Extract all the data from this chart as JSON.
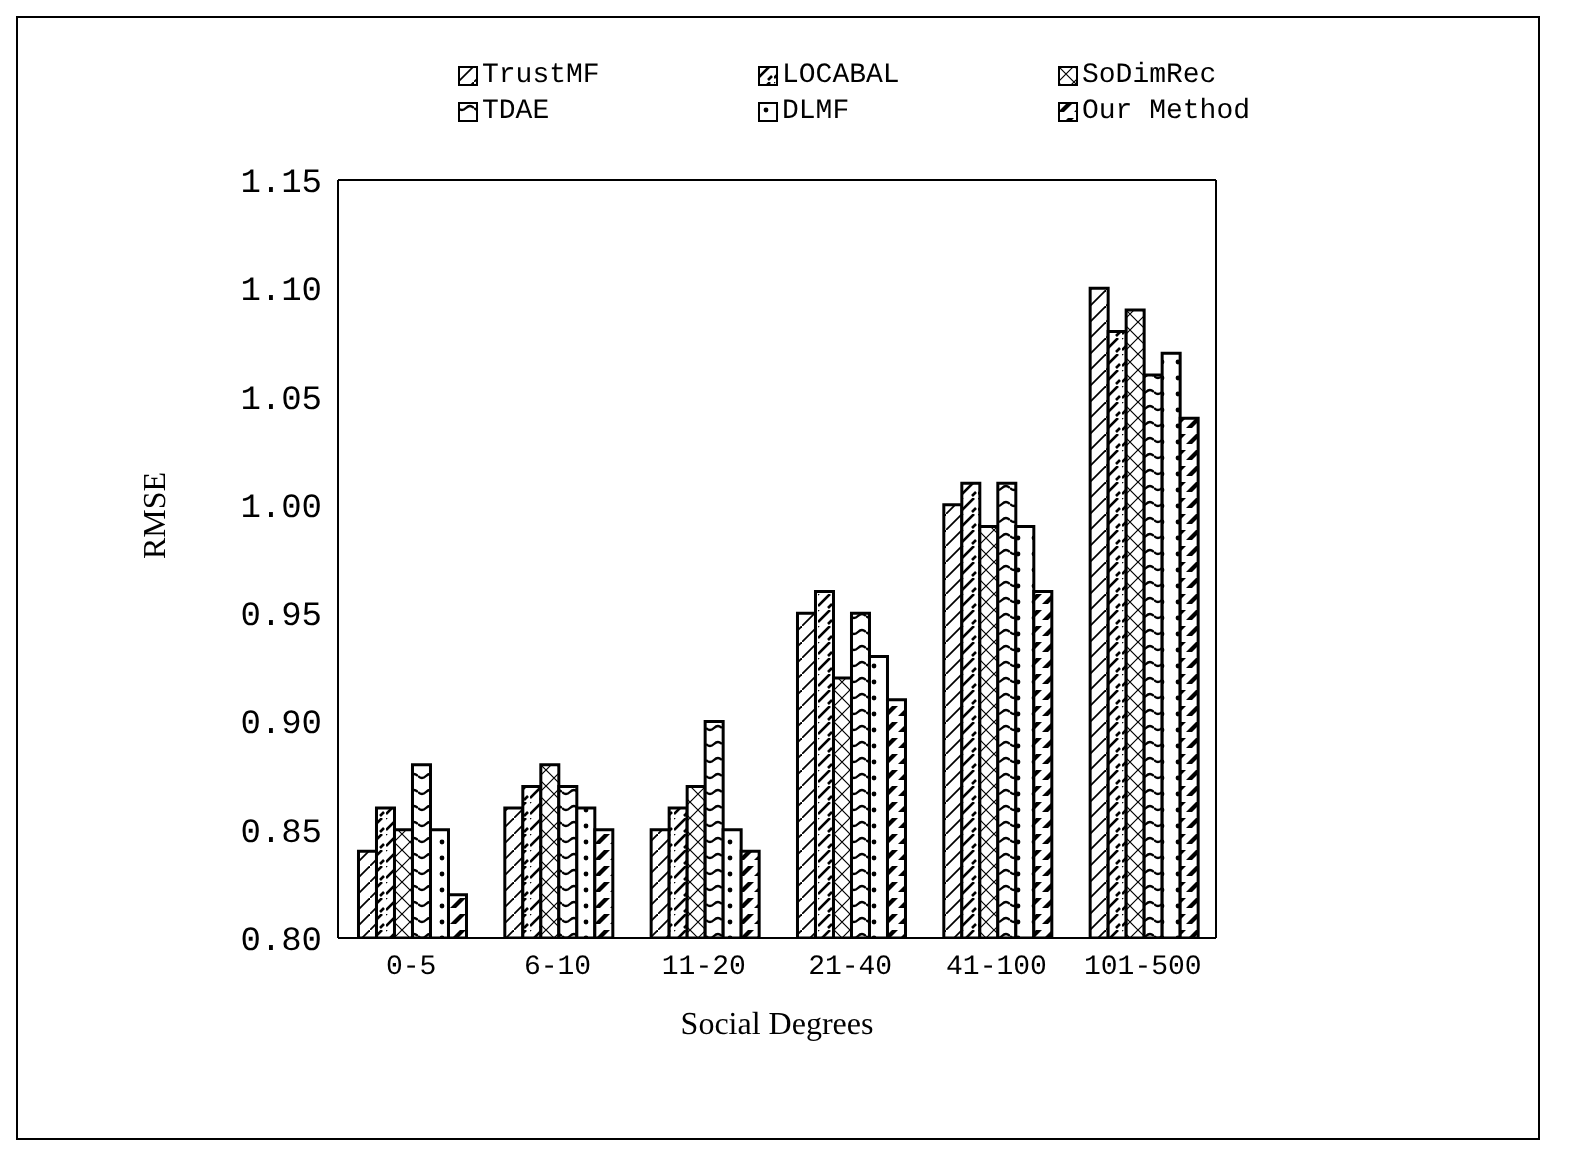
{
  "chart_data": {
    "type": "bar",
    "xlabel": "Social Degrees",
    "ylabel": "RMSE",
    "categories": [
      "0-5",
      "6-10",
      "11-20",
      "21-40",
      "41-100",
      "101-500"
    ],
    "series": [
      {
        "name": "TrustMF",
        "color": "#000000",
        "values": [
          0.84,
          0.86,
          0.85,
          0.95,
          1.0,
          1.1
        ]
      },
      {
        "name": "LOCABAL",
        "color": "#000000",
        "values": [
          0.86,
          0.87,
          0.86,
          0.96,
          1.01,
          1.08
        ]
      },
      {
        "name": "SoDimRec",
        "color": "#000000",
        "values": [
          0.85,
          0.88,
          0.87,
          0.92,
          0.99,
          1.09
        ]
      },
      {
        "name": "TDAE",
        "color": "#000000",
        "values": [
          0.88,
          0.87,
          0.9,
          0.95,
          1.01,
          1.06
        ]
      },
      {
        "name": "DLMF",
        "color": "#000000",
        "values": [
          0.85,
          0.86,
          0.85,
          0.93,
          0.99,
          1.07
        ]
      },
      {
        "name": "Our Method",
        "color": "#000000",
        "values": [
          0.82,
          0.85,
          0.84,
          0.91,
          0.96,
          1.04
        ]
      }
    ],
    "ylim": [
      0.8,
      1.15
    ],
    "yticks": [
      {
        "value": 0.8,
        "label": "0.80"
      },
      {
        "value": 0.85,
        "label": "0.85"
      },
      {
        "value": 0.9,
        "label": "0.90"
      },
      {
        "value": 0.95,
        "label": "0.95"
      },
      {
        "value": 1.0,
        "label": "1.00"
      },
      {
        "value": 1.05,
        "label": "1.05"
      },
      {
        "value": 1.1,
        "label": "1.10"
      },
      {
        "value": 1.15,
        "label": "1.15"
      }
    ],
    "grid": false,
    "legend": "top"
  }
}
